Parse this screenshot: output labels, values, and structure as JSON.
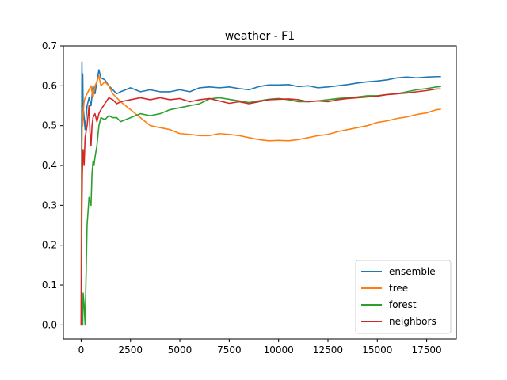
{
  "chart_data": {
    "type": "line",
    "title": "weather - F1",
    "xlabel": "",
    "ylabel": "",
    "xlim": [
      -900,
      19000
    ],
    "ylim": [
      -0.035,
      0.7
    ],
    "xticks": [
      0,
      2500,
      5000,
      7500,
      10000,
      12500,
      15000,
      17500
    ],
    "yticks": [
      0.0,
      0.1,
      0.2,
      0.3,
      0.4,
      0.5,
      0.6,
      0.7
    ],
    "xtick_labels": [
      "0",
      "2500",
      "5000",
      "7500",
      "10000",
      "12500",
      "15000",
      "17500"
    ],
    "ytick_labels": [
      "0.0",
      "0.1",
      "0.2",
      "0.3",
      "0.4",
      "0.5",
      "0.6",
      "0.7"
    ],
    "grid": false,
    "legend_position": "bottom-right",
    "series": [
      {
        "name": "ensemble",
        "color": "#1f77b4",
        "x": [
          0,
          20,
          40,
          60,
          80,
          100,
          150,
          200,
          300,
          400,
          500,
          600,
          700,
          800,
          900,
          1000,
          1200,
          1400,
          1600,
          1800,
          2000,
          2500,
          3000,
          3500,
          4000,
          4500,
          5000,
          5500,
          6000,
          6500,
          7000,
          7500,
          8000,
          8500,
          9000,
          9500,
          10000,
          10500,
          11000,
          11500,
          12000,
          12500,
          13000,
          13500,
          14000,
          14500,
          15000,
          15500,
          16000,
          16500,
          17000,
          17500,
          18000,
          18200
        ],
        "y": [
          0.0,
          0.45,
          0.66,
          0.5,
          0.63,
          0.55,
          0.52,
          0.49,
          0.55,
          0.57,
          0.55,
          0.6,
          0.58,
          0.61,
          0.64,
          0.62,
          0.615,
          0.6,
          0.59,
          0.58,
          0.585,
          0.595,
          0.585,
          0.59,
          0.585,
          0.585,
          0.59,
          0.585,
          0.595,
          0.597,
          0.595,
          0.597,
          0.593,
          0.59,
          0.598,
          0.602,
          0.602,
          0.603,
          0.598,
          0.6,
          0.595,
          0.597,
          0.6,
          0.603,
          0.607,
          0.61,
          0.612,
          0.615,
          0.62,
          0.622,
          0.62,
          0.622,
          0.623,
          0.623
        ]
      },
      {
        "name": "tree",
        "color": "#ff7f0e",
        "x": [
          0,
          20,
          40,
          60,
          80,
          100,
          150,
          200,
          300,
          400,
          500,
          600,
          700,
          800,
          900,
          1000,
          1200,
          1400,
          1600,
          1800,
          2000,
          2500,
          3000,
          3500,
          4000,
          4500,
          5000,
          5500,
          6000,
          6500,
          7000,
          7500,
          8000,
          8500,
          9000,
          9500,
          10000,
          10500,
          11000,
          11500,
          12000,
          12500,
          13000,
          13500,
          14000,
          14500,
          15000,
          15500,
          16000,
          16500,
          17000,
          17500,
          18000,
          18200
        ],
        "y": [
          0.0,
          0.3,
          0.45,
          0.52,
          0.5,
          0.53,
          0.56,
          0.57,
          0.58,
          0.59,
          0.6,
          0.57,
          0.6,
          0.61,
          0.625,
          0.6,
          0.61,
          0.6,
          0.58,
          0.57,
          0.56,
          0.54,
          0.52,
          0.5,
          0.495,
          0.49,
          0.48,
          0.478,
          0.475,
          0.475,
          0.48,
          0.478,
          0.475,
          0.47,
          0.465,
          0.462,
          0.463,
          0.462,
          0.465,
          0.47,
          0.475,
          0.478,
          0.485,
          0.49,
          0.495,
          0.5,
          0.508,
          0.512,
          0.518,
          0.522,
          0.528,
          0.532,
          0.54,
          0.541
        ]
      },
      {
        "name": "forest",
        "color": "#2ca02c",
        "x": [
          0,
          40,
          80,
          100,
          150,
          200,
          300,
          400,
          500,
          550,
          600,
          650,
          700,
          800,
          900,
          1000,
          1200,
          1400,
          1600,
          1800,
          2000,
          2500,
          3000,
          3500,
          4000,
          4500,
          5000,
          5500,
          6000,
          6500,
          7000,
          7500,
          8000,
          8500,
          9000,
          9500,
          10000,
          10500,
          11000,
          11500,
          12000,
          12500,
          13000,
          13500,
          14000,
          14500,
          15000,
          15500,
          16000,
          16500,
          17000,
          17500,
          18000,
          18200
        ],
        "y": [
          0.0,
          0.0,
          0.0,
          0.08,
          0.05,
          0.0,
          0.25,
          0.32,
          0.3,
          0.38,
          0.41,
          0.4,
          0.42,
          0.45,
          0.5,
          0.52,
          0.515,
          0.525,
          0.52,
          0.52,
          0.51,
          0.52,
          0.53,
          0.525,
          0.53,
          0.54,
          0.545,
          0.55,
          0.555,
          0.567,
          0.57,
          0.566,
          0.562,
          0.558,
          0.562,
          0.566,
          0.568,
          0.565,
          0.56,
          0.56,
          0.562,
          0.565,
          0.568,
          0.57,
          0.572,
          0.575,
          0.575,
          0.578,
          0.58,
          0.585,
          0.59,
          0.593,
          0.597,
          0.598
        ]
      },
      {
        "name": "neighbors",
        "color": "#d62728",
        "x": [
          0,
          20,
          40,
          60,
          80,
          100,
          150,
          200,
          300,
          400,
          450,
          500,
          550,
          600,
          700,
          800,
          900,
          1000,
          1200,
          1400,
          1600,
          1800,
          2000,
          2500,
          3000,
          3500,
          4000,
          4500,
          5000,
          5500,
          6000,
          6500,
          7000,
          7500,
          8000,
          8500,
          9000,
          9500,
          10000,
          10500,
          11000,
          11500,
          12000,
          12500,
          13000,
          13500,
          14000,
          14500,
          15000,
          15500,
          16000,
          16500,
          17000,
          17500,
          18000,
          18200
        ],
        "y": [
          0.0,
          0.15,
          0.3,
          0.38,
          0.42,
          0.44,
          0.4,
          0.47,
          0.5,
          0.55,
          0.48,
          0.45,
          0.5,
          0.52,
          0.53,
          0.51,
          0.53,
          0.54,
          0.555,
          0.57,
          0.565,
          0.555,
          0.56,
          0.565,
          0.57,
          0.565,
          0.57,
          0.565,
          0.568,
          0.56,
          0.565,
          0.568,
          0.562,
          0.556,
          0.56,
          0.555,
          0.56,
          0.565,
          0.566,
          0.567,
          0.565,
          0.56,
          0.562,
          0.56,
          0.565,
          0.568,
          0.57,
          0.572,
          0.574,
          0.578,
          0.58,
          0.582,
          0.585,
          0.588,
          0.592,
          0.592
        ]
      }
    ]
  }
}
